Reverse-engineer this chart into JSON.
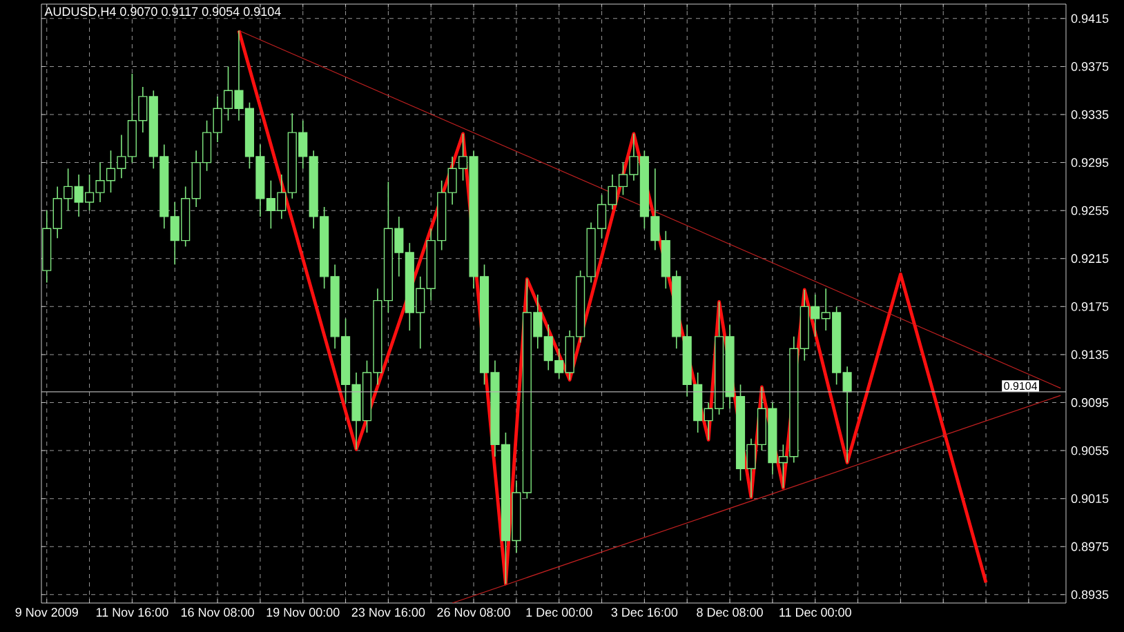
{
  "chart_data": {
    "type": "candlestick",
    "title": "AUDUSD,H4  0.9070 0.9117 0.9054 0.9104",
    "color": "#80e880",
    "categories": [
      "9 Nov 2009",
      null,
      null,
      null,
      null,
      null,
      null,
      null,
      "11 Nov 16:00",
      null,
      null,
      null,
      null,
      null,
      null,
      null,
      "16 Nov 08:00",
      null,
      null,
      null,
      null,
      null,
      null,
      null,
      "19 Nov 00:00",
      null,
      null,
      null,
      null,
      null,
      null,
      null,
      "23 Nov 16:00",
      null,
      null,
      null,
      null,
      null,
      null,
      null,
      "26 Nov 08:00",
      null,
      null,
      null,
      null,
      null,
      null,
      null,
      "1 Dec 00:00",
      null,
      null,
      null,
      null,
      null,
      null,
      null,
      "3 Dec 16:00",
      null,
      null,
      null,
      null,
      null,
      null,
      null,
      "8 Dec 08:00",
      null,
      null,
      null,
      null,
      null,
      null,
      null,
      "11 Dec 00:00",
      null,
      null,
      null,
      null,
      null,
      null,
      null,
      null,
      null,
      null,
      null,
      null,
      null,
      null,
      null,
      null,
      null,
      null,
      null,
      null,
      null,
      null,
      null
    ],
    "ohlc": [
      [
        0.9205,
        0.9255,
        0.9195,
        0.924
      ],
      [
        0.924,
        0.9275,
        0.9232,
        0.9265
      ],
      [
        0.9265,
        0.929,
        0.9255,
        0.9275
      ],
      [
        0.9275,
        0.9285,
        0.925,
        0.9262
      ],
      [
        0.9262,
        0.9285,
        0.9255,
        0.927
      ],
      [
        0.927,
        0.9295,
        0.9262,
        0.928
      ],
      [
        0.928,
        0.9305,
        0.927,
        0.929
      ],
      [
        0.929,
        0.9318,
        0.9282,
        0.93
      ],
      [
        0.93,
        0.9369,
        0.9295,
        0.933
      ],
      [
        0.933,
        0.9358,
        0.932,
        0.935
      ],
      [
        0.935,
        0.9355,
        0.929,
        0.93
      ],
      [
        0.93,
        0.931,
        0.924,
        0.925
      ],
      [
        0.925,
        0.9262,
        0.921,
        0.923
      ],
      [
        0.923,
        0.9275,
        0.9225,
        0.9265
      ],
      [
        0.9265,
        0.9305,
        0.9258,
        0.9295
      ],
      [
        0.9295,
        0.933,
        0.9288,
        0.932
      ],
      [
        0.932,
        0.935,
        0.9312,
        0.934
      ],
      [
        0.934,
        0.9375,
        0.933,
        0.9355
      ],
      [
        0.9355,
        0.9405,
        0.933,
        0.934
      ],
      [
        0.934,
        0.9345,
        0.929,
        0.93
      ],
      [
        0.93,
        0.931,
        0.925,
        0.9265
      ],
      [
        0.9265,
        0.928,
        0.924,
        0.9255
      ],
      [
        0.9255,
        0.9285,
        0.9248,
        0.927
      ],
      [
        0.927,
        0.9336,
        0.9265,
        0.932
      ],
      [
        0.932,
        0.933,
        0.929,
        0.93
      ],
      [
        0.93,
        0.9305,
        0.924,
        0.925
      ],
      [
        0.925,
        0.9258,
        0.919,
        0.92
      ],
      [
        0.92,
        0.921,
        0.914,
        0.915
      ],
      [
        0.915,
        0.9165,
        0.9095,
        0.911
      ],
      [
        0.911,
        0.912,
        0.9056,
        0.908
      ],
      [
        0.908,
        0.913,
        0.907,
        0.912
      ],
      [
        0.912,
        0.919,
        0.911,
        0.918
      ],
      [
        0.918,
        0.9279,
        0.917,
        0.924
      ],
      [
        0.924,
        0.925,
        0.92,
        0.922
      ],
      [
        0.922,
        0.9228,
        0.9155,
        0.917
      ],
      [
        0.917,
        0.92,
        0.914,
        0.919
      ],
      [
        0.919,
        0.924,
        0.918,
        0.923
      ],
      [
        0.923,
        0.928,
        0.9222,
        0.927
      ],
      [
        0.927,
        0.93,
        0.926,
        0.929
      ],
      [
        0.929,
        0.9319,
        0.928,
        0.93
      ],
      [
        0.93,
        0.9305,
        0.919,
        0.92
      ],
      [
        0.92,
        0.921,
        0.911,
        0.912
      ],
      [
        0.912,
        0.913,
        0.905,
        0.906
      ],
      [
        0.906,
        0.907,
        0.8944,
        0.898
      ],
      [
        0.898,
        0.903,
        0.897,
        0.902
      ],
      [
        0.902,
        0.9198,
        0.9015,
        0.917
      ],
      [
        0.917,
        0.9185,
        0.914,
        0.915
      ],
      [
        0.915,
        0.916,
        0.9122,
        0.913
      ],
      [
        0.913,
        0.914,
        0.9115,
        0.912
      ],
      [
        0.912,
        0.9155,
        0.9114,
        0.915
      ],
      [
        0.915,
        0.9205,
        0.9145,
        0.92
      ],
      [
        0.92,
        0.9245,
        0.9195,
        0.924
      ],
      [
        0.924,
        0.9268,
        0.9232,
        0.926
      ],
      [
        0.926,
        0.9285,
        0.9256,
        0.9275
      ],
      [
        0.9275,
        0.9295,
        0.9268,
        0.9285
      ],
      [
        0.9285,
        0.9319,
        0.928,
        0.93
      ],
      [
        0.93,
        0.9305,
        0.924,
        0.925
      ],
      [
        0.925,
        0.929,
        0.9222,
        0.923
      ],
      [
        0.923,
        0.9238,
        0.919,
        0.92
      ],
      [
        0.92,
        0.9205,
        0.914,
        0.915
      ],
      [
        0.915,
        0.916,
        0.91,
        0.911
      ],
      [
        0.911,
        0.912,
        0.907,
        0.908
      ],
      [
        0.908,
        0.9095,
        0.9064,
        0.909
      ],
      [
        0.909,
        0.9179,
        0.9085,
        0.915
      ],
      [
        0.915,
        0.916,
        0.909,
        0.91
      ],
      [
        0.91,
        0.911,
        0.903,
        0.904
      ],
      [
        0.904,
        0.9065,
        0.9016,
        0.906
      ],
      [
        0.906,
        0.9108,
        0.9055,
        0.909
      ],
      [
        0.909,
        0.9095,
        0.9035,
        0.9045
      ],
      [
        0.9045,
        0.906,
        0.9024,
        0.905
      ],
      [
        0.905,
        0.915,
        0.9045,
        0.914
      ],
      [
        0.914,
        0.9189,
        0.913,
        0.9175
      ],
      [
        0.9175,
        0.9185,
        0.915,
        0.9165
      ],
      [
        0.9165,
        0.919,
        0.9155,
        0.917
      ],
      [
        0.917,
        0.9175,
        0.911,
        0.912
      ],
      [
        0.912,
        0.9125,
        0.9045,
        0.9104
      ],
      null,
      null,
      null,
      null,
      null,
      null,
      null,
      null,
      null,
      null,
      null,
      null,
      null,
      null,
      null,
      null,
      null,
      null,
      null,
      null
    ],
    "series": [
      {
        "type": "line",
        "color": "#ff1010",
        "values": [
          null,
          null,
          null,
          null,
          null,
          null,
          null,
          null,
          null,
          null,
          null,
          null,
          null,
          null,
          null,
          null,
          null,
          null,
          0.9405,
          null,
          null,
          null,
          null,
          null,
          null,
          null,
          null,
          null,
          null,
          0.9056,
          null,
          null,
          null,
          null,
          null,
          null,
          null,
          null,
          null,
          0.9319,
          null,
          null,
          null,
          0.8944,
          null,
          0.9198,
          null,
          null,
          null,
          0.9114,
          null,
          null,
          null,
          null,
          null,
          0.9319,
          null,
          null,
          null,
          null,
          null,
          null,
          0.9064,
          0.9179,
          null,
          null,
          0.9016,
          0.9108,
          null,
          0.9024,
          null,
          0.9189,
          null,
          null,
          null,
          0.9045,
          null,
          null,
          null,
          null,
          0.9202,
          null,
          null,
          null,
          null,
          null,
          null,
          null,
          0.8945,
          null,
          null,
          null,
          null,
          null,
          null,
          null
        ]
      },
      {
        "type": "line",
        "color": "#c02020",
        "values": [
          null,
          null,
          null,
          null,
          null,
          null,
          null,
          null,
          null,
          null,
          null,
          null,
          null,
          null,
          null,
          null,
          null,
          null,
          0.9405,
          null,
          null,
          null,
          null,
          null,
          null,
          null,
          null,
          null,
          null,
          null,
          null,
          null,
          null,
          null,
          null,
          null,
          null,
          null,
          null,
          null,
          null,
          null,
          null,
          null,
          null,
          null,
          null,
          null,
          null,
          null,
          null,
          null,
          null,
          null,
          null,
          null,
          null,
          null,
          null,
          null,
          null,
          null,
          null,
          null,
          null,
          null,
          null,
          null,
          null,
          null,
          null,
          null,
          null,
          null,
          null,
          null,
          null,
          null,
          null,
          null,
          null,
          null,
          null,
          null,
          null,
          null,
          null,
          null,
          null,
          null,
          null,
          null,
          null,
          null,
          null,
          0.9107
        ]
      },
      {
        "type": "line",
        "color": "#c02020",
        "values": [
          null,
          null,
          null,
          null,
          null,
          null,
          null,
          null,
          null,
          null,
          null,
          null,
          null,
          null,
          null,
          null,
          null,
          null,
          null,
          null,
          null,
          null,
          null,
          null,
          null,
          null,
          null,
          null,
          null,
          null,
          null,
          null,
          null,
          null,
          null,
          null,
          null,
          null,
          0.8928,
          null,
          null,
          null,
          null,
          null,
          null,
          null,
          null,
          null,
          null,
          null,
          null,
          null,
          null,
          null,
          null,
          null,
          null,
          null,
          null,
          null,
          null,
          null,
          null,
          null,
          null,
          null,
          null,
          null,
          null,
          null,
          null,
          null,
          null,
          null,
          null,
          null,
          null,
          null,
          null,
          null,
          null,
          null,
          null,
          null,
          null,
          null,
          null,
          null,
          null,
          null,
          null,
          null,
          null,
          null,
          null,
          0.9101
        ]
      }
    ],
    "ref_lines": [
      {
        "axis": "y",
        "value": 0.9104,
        "label": "0.9104",
        "color": "#b0b0b0"
      }
    ],
    "ylim": [
      0.8928,
      0.9427
    ],
    "yticks": [
      0.8935,
      0.8975,
      0.9015,
      0.9055,
      0.9095,
      0.9135,
      0.9175,
      0.9215,
      0.9255,
      0.9295,
      0.9335,
      0.9375,
      0.9415
    ],
    "grid": true,
    "line_style": "solid"
  }
}
